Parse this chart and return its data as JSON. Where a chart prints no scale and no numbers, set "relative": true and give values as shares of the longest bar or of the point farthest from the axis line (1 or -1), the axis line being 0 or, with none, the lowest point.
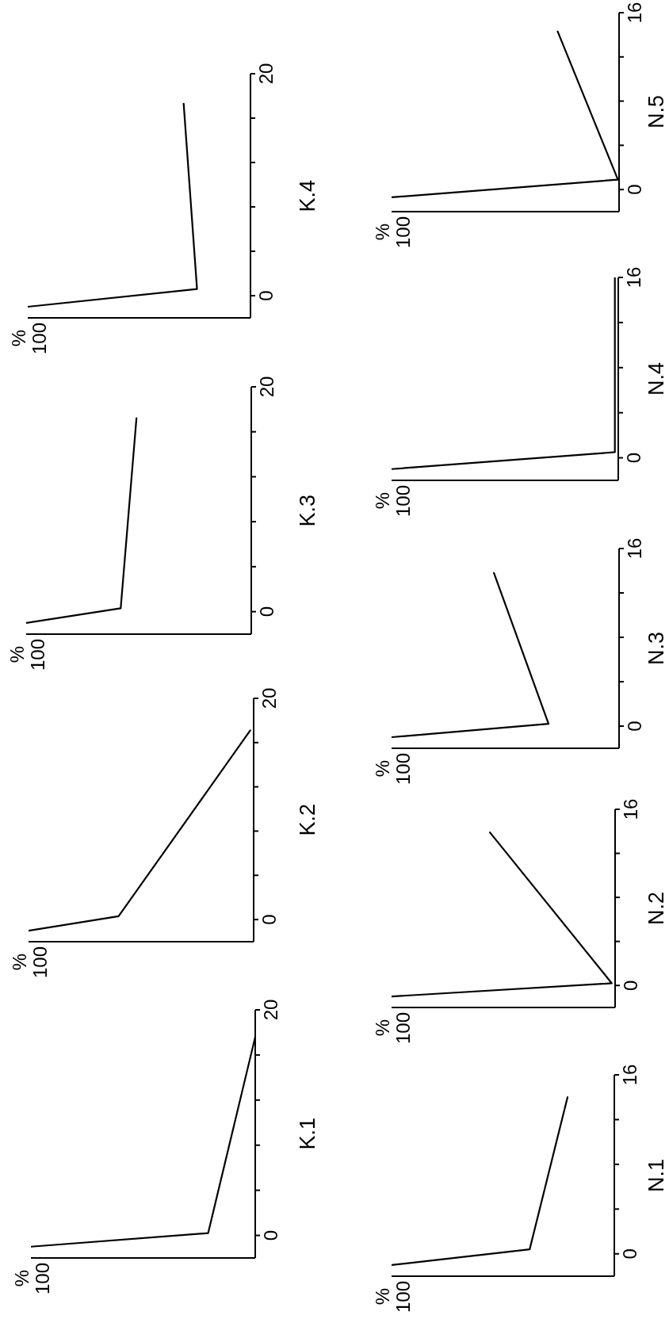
{
  "chart_data": [
    {
      "type": "line",
      "orientation": "horizontal",
      "relative": true,
      "ylabel": "K.1",
      "annotations": [
        "%",
        "100"
      ],
      "x": [
        -1,
        0.2,
        17.6
      ],
      "values": [
        -1,
        -0.21,
        0
      ],
      "color": "#000000",
      "ylim": [
        -2,
        20
      ],
      "yticks": [
        0,
        {
          "value": 4,
          "label": null
        },
        {
          "value": 8,
          "label": null
        },
        {
          "value": 12,
          "label": null
        },
        {
          "value": 16,
          "label": null
        },
        20
      ]
    },
    {
      "type": "line",
      "orientation": "horizontal",
      "relative": true,
      "ylabel": "K.2",
      "annotations": [
        "%",
        "100"
      ],
      "x": [
        -1,
        0.3,
        17.1
      ],
      "values": [
        -1,
        -0.6,
        -0.015
      ],
      "color": "#000000",
      "ylim": [
        -2,
        20
      ],
      "yticks": [
        0,
        {
          "value": 4,
          "label": null
        },
        {
          "value": 8,
          "label": null
        },
        {
          "value": 12,
          "label": null
        },
        {
          "value": 16,
          "label": null
        },
        20
      ]
    },
    {
      "type": "line",
      "orientation": "horizontal",
      "relative": true,
      "ylabel": "K.3",
      "annotations": [
        "%",
        "100"
      ],
      "x": [
        -1,
        0.3,
        17.2
      ],
      "values": [
        -1,
        -0.58,
        -0.51
      ],
      "color": "#000000",
      "ylim": [
        -2,
        20
      ],
      "yticks": [
        0,
        {
          "value": 4,
          "label": null
        },
        {
          "value": 8,
          "label": null
        },
        {
          "value": 12,
          "label": null
        },
        {
          "value": 16,
          "label": null
        },
        20
      ]
    },
    {
      "type": "line",
      "orientation": "horizontal",
      "relative": true,
      "ylabel": "K.4",
      "annotations": [
        "%",
        "100"
      ],
      "x": [
        -1,
        0.6,
        17.3
      ],
      "values": [
        -1,
        -0.24,
        -0.3
      ],
      "color": "#000000",
      "ylim": [
        -2,
        20
      ],
      "yticks": [
        0,
        {
          "value": 4,
          "label": null
        },
        {
          "value": 8,
          "label": null
        },
        {
          "value": 12,
          "label": null
        },
        {
          "value": 16,
          "label": null
        },
        20
      ]
    },
    {
      "type": "line",
      "orientation": "horizontal",
      "relative": true,
      "ylabel": "N.1",
      "annotations": [
        "%",
        "100"
      ],
      "x": [
        -1,
        0.4,
        14
      ],
      "values": [
        -1,
        -0.38,
        -0.21
      ],
      "color": "#000000",
      "ylim": [
        -2,
        16
      ],
      "yticks": [
        0,
        {
          "value": 4,
          "label": null
        },
        {
          "value": 8,
          "label": null
        },
        {
          "value": 12,
          "label": null
        },
        16
      ]
    },
    {
      "type": "line",
      "orientation": "horizontal",
      "relative": true,
      "ylabel": "N.2",
      "annotations": [
        "%",
        "100"
      ],
      "x": [
        -1,
        0.2,
        13.9
      ],
      "values": [
        -1,
        -0.015,
        -0.56
      ],
      "color": "#000000",
      "ylim": [
        -2,
        16
      ],
      "yticks": [
        0,
        {
          "value": 4,
          "label": null
        },
        {
          "value": 8,
          "label": null
        },
        {
          "value": 12,
          "label": null
        },
        16
      ]
    },
    {
      "type": "line",
      "orientation": "horizontal",
      "relative": true,
      "ylabel": "N.3",
      "annotations": [
        "%",
        "100"
      ],
      "x": [
        -1,
        0.2,
        13.8
      ],
      "values": [
        -1,
        -0.31,
        -0.55
      ],
      "color": "#000000",
      "ylim": [
        -2,
        16
      ],
      "yticks": [
        0,
        {
          "value": 4,
          "label": null
        },
        {
          "value": 8,
          "label": null
        },
        {
          "value": 12,
          "label": null
        },
        16
      ]
    },
    {
      "type": "line",
      "orientation": "horizontal",
      "relative": true,
      "ylabel": "N.4",
      "annotations": [
        "%",
        "100"
      ],
      "x": [
        -1,
        0.5,
        16
      ],
      "values": [
        -1,
        -0.015,
        -0.015
      ],
      "color": "#000000",
      "ylim": [
        -2,
        16
      ],
      "yticks": [
        0,
        {
          "value": 4,
          "label": null
        },
        {
          "value": 8,
          "label": null
        },
        {
          "value": 12,
          "label": null
        },
        16
      ]
    },
    {
      "type": "line",
      "orientation": "horizontal",
      "relative": true,
      "ylabel": "N.5",
      "annotations": [
        "%",
        "100"
      ],
      "x": [
        -0.7,
        0.9,
        14.3
      ],
      "values": [
        -1,
        -0.005,
        -0.27
      ],
      "color": "#000000",
      "ylim": [
        -2,
        16
      ],
      "yticks": [
        0,
        {
          "value": 4,
          "label": null
        },
        {
          "value": 8,
          "label": null
        },
        {
          "value": 12,
          "label": null
        },
        16
      ]
    }
  ]
}
